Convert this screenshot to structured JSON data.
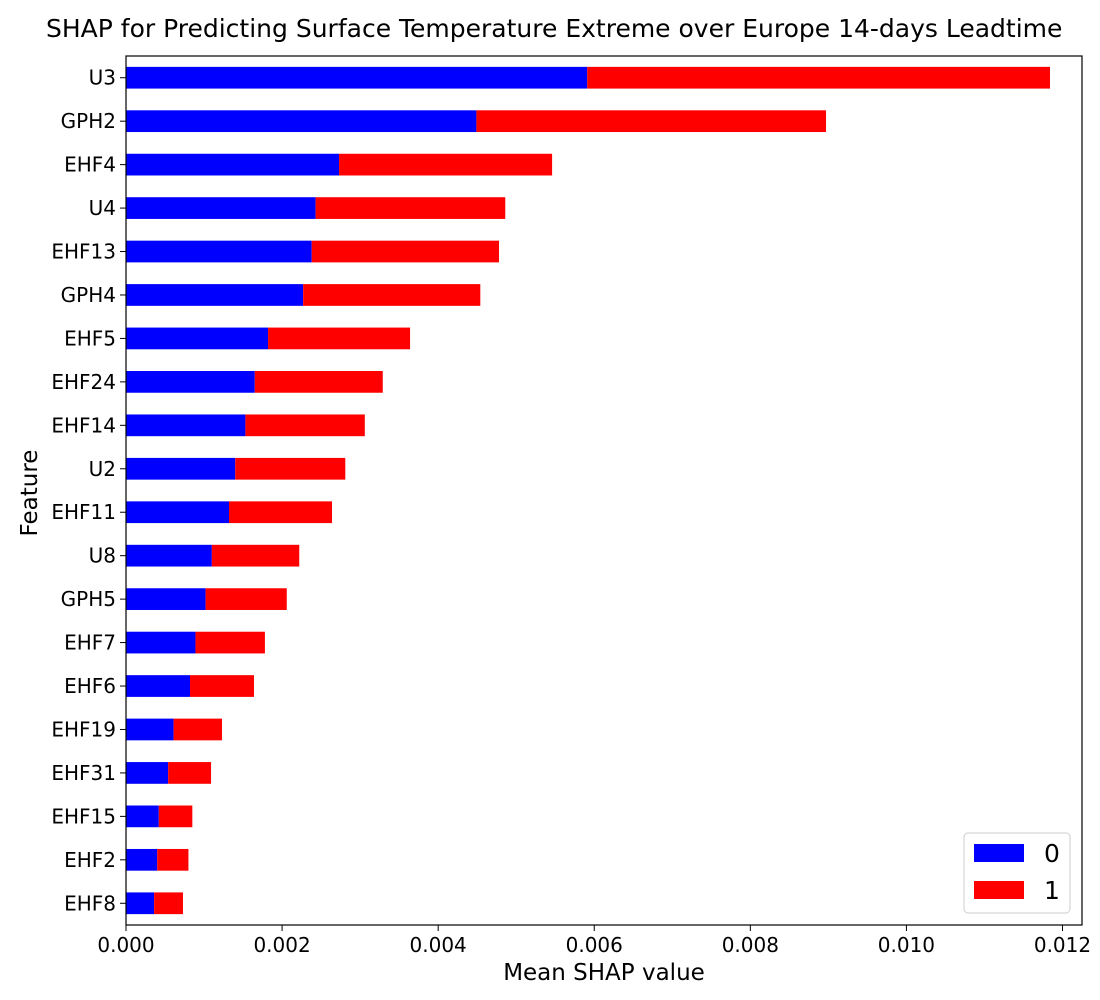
{
  "chart_data": {
    "type": "bar",
    "orientation": "horizontal",
    "stacked": true,
    "title": "SHAP for Predicting Surface Temperature Extreme over Europe 14-days Leadtime",
    "xlabel": "Mean SHAP value",
    "ylabel": "Feature",
    "xlim": [
      0,
      0.01225
    ],
    "x_ticks": [
      "0.000",
      "0.002",
      "0.004",
      "0.006",
      "0.008",
      "0.010",
      "0.012"
    ],
    "x_tick_values": [
      0,
      0.002,
      0.004,
      0.006,
      0.008,
      0.01,
      0.012
    ],
    "grid": false,
    "legend_position": "bottom-right",
    "categories": [
      "U3",
      "GPH2",
      "EHF4",
      "U4",
      "EHF13",
      "GPH4",
      "EHF5",
      "EHF24",
      "EHF14",
      "U2",
      "EHF11",
      "U8",
      "GPH5",
      "EHF7",
      "EHF6",
      "EHF19",
      "EHF31",
      "EHF15",
      "EHF2",
      "EHF8"
    ],
    "series": [
      {
        "name": "0",
        "color": "#0000ff",
        "values": [
          0.00591,
          0.00449,
          0.00273,
          0.00243,
          0.00238,
          0.00227,
          0.00182,
          0.00165,
          0.00153,
          0.0014,
          0.00132,
          0.0011,
          0.00102,
          0.00089,
          0.00082,
          0.00061,
          0.00054,
          0.00042,
          0.0004,
          0.00036
        ]
      },
      {
        "name": "1",
        "color": "#ff0000",
        "values": [
          0.00593,
          0.00448,
          0.00273,
          0.00243,
          0.0024,
          0.00227,
          0.00182,
          0.00164,
          0.00153,
          0.00141,
          0.00132,
          0.00112,
          0.00104,
          0.00089,
          0.00082,
          0.00062,
          0.00055,
          0.00043,
          0.0004,
          0.00037
        ]
      }
    ]
  }
}
